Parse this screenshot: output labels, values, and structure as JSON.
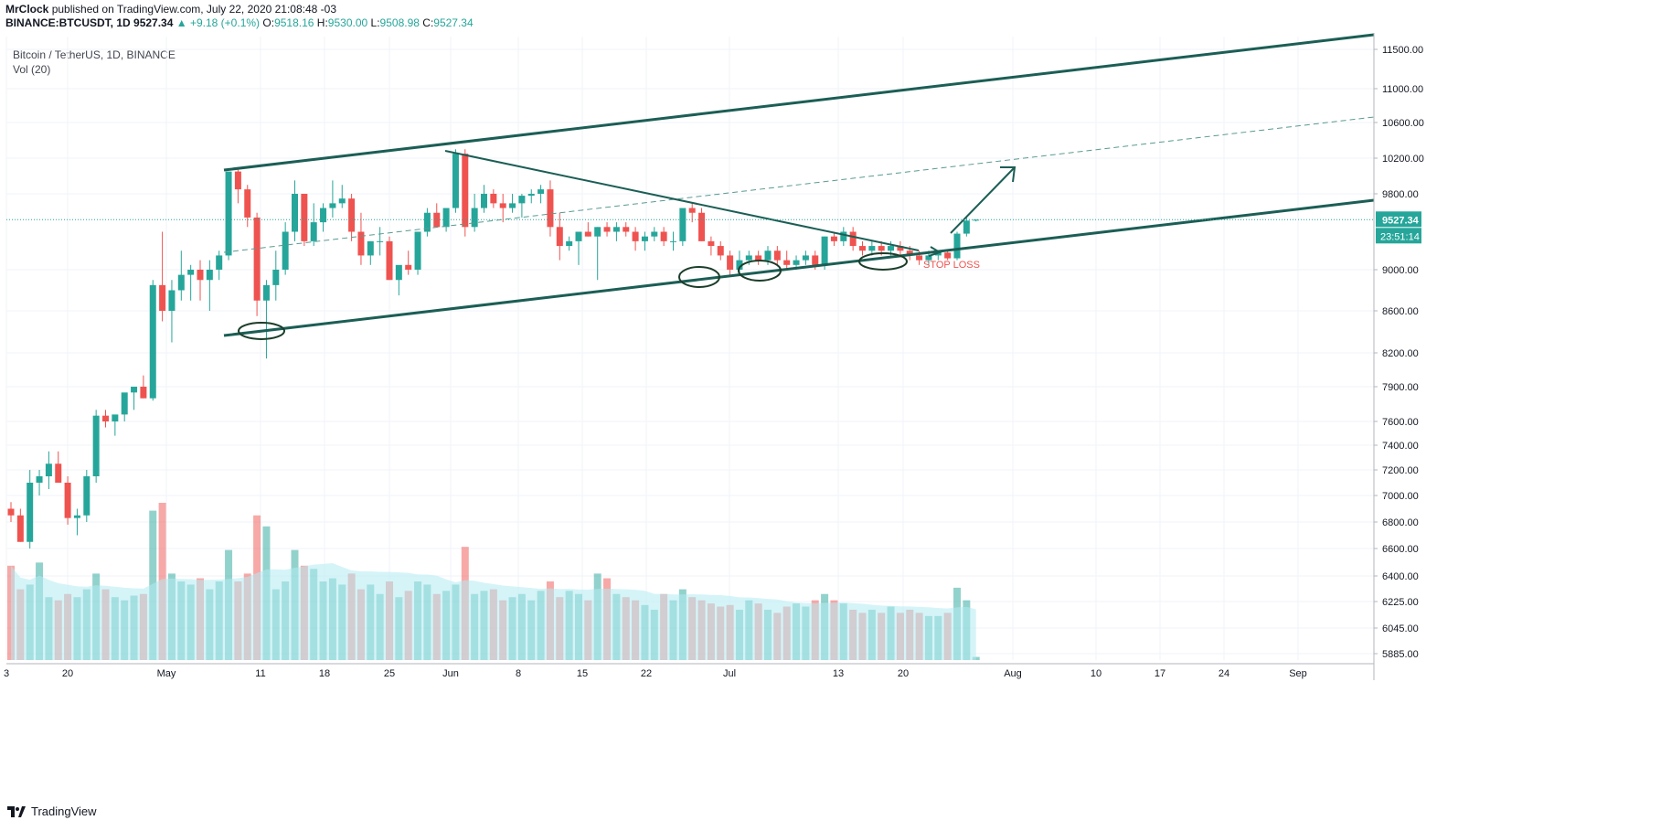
{
  "header": {
    "author": "MrClock",
    "published_text": "published on TradingView.com, July 22, 2020 21:08:48 -03",
    "symbol": "BINANCE:BTCUSDT, 1D",
    "last": "9527.34",
    "change": "+9.18 (+0.1%)",
    "o_label": "O:",
    "o_value": "9518.16",
    "h_label": "H:",
    "h_value": "9530.00",
    "l_label": "L:",
    "l_value": "9508.98",
    "c_label": "C:",
    "c_value": "9527.34"
  },
  "legend": {
    "title": "Bitcoin / TetherUS, 1D, BINANCE",
    "volume": "Vol (20)"
  },
  "price_label": "9527.34",
  "countdown_label": "23:51:14",
  "annotation": "STOP LOSS",
  "footer": {
    "brand": "TradingView"
  },
  "colors": {
    "up": "#26a69a",
    "down": "#ef5350",
    "line": "#1b5e55",
    "ma": "#b2ebf2",
    "price_line": "#26a69a"
  },
  "chart_data": {
    "type": "candlestick",
    "title": "Bitcoin / TetherUS, 1D, BINANCE",
    "y_ticks": [
      "11500.00",
      "11000.00",
      "10600.00",
      "10200.00",
      "9800.00",
      "9000.00",
      "8600.00",
      "8200.00",
      "7900.00",
      "7600.00",
      "7400.00",
      "7200.00",
      "7000.00",
      "6800.00",
      "6600.00",
      "6400.00",
      "6225.00",
      "6045.00",
      "5885.00"
    ],
    "x_ticks": [
      "3",
      "20",
      "May",
      "11",
      "18",
      "25",
      "Jun",
      "8",
      "15",
      "22",
      "Jul",
      "13",
      "20",
      "Aug",
      "10",
      "17",
      "24",
      "Sep"
    ],
    "last_price": 9527.34,
    "ohlc_approx": [
      [
        6900,
        6950,
        6800,
        6850
      ],
      [
        6850,
        6900,
        6650,
        6650
      ],
      [
        6650,
        7200,
        6600,
        7100
      ],
      [
        7100,
        7200,
        7000,
        7150
      ],
      [
        7150,
        7350,
        7050,
        7250
      ],
      [
        7250,
        7350,
        7100,
        7100
      ],
      [
        7100,
        7150,
        6780,
        6830
      ],
      [
        6830,
        6900,
        6700,
        6850
      ],
      [
        6850,
        7200,
        6800,
        7150
      ],
      [
        7150,
        7700,
        7100,
        7650
      ],
      [
        7650,
        7700,
        7550,
        7600
      ],
      [
        7600,
        7650,
        7480,
        7660
      ],
      [
        7660,
        7800,
        7600,
        7850
      ],
      [
        7850,
        7900,
        7700,
        7900
      ],
      [
        7900,
        8000,
        7800,
        7800
      ],
      [
        7800,
        8900,
        7780,
        8850
      ],
      [
        8850,
        9400,
        8500,
        8600
      ],
      [
        8600,
        8900,
        8300,
        8800
      ],
      [
        8800,
        9200,
        8700,
        8950
      ],
      [
        8950,
        9050,
        8700,
        9000
      ],
      [
        9000,
        9100,
        8700,
        8900
      ],
      [
        8900,
        9100,
        8600,
        9000
      ],
      [
        9000,
        9200,
        8900,
        9150
      ],
      [
        9150,
        10050,
        9100,
        10050
      ],
      [
        10050,
        10100,
        9700,
        9850
      ],
      [
        9850,
        9900,
        9450,
        9550
      ],
      [
        9550,
        9600,
        8550,
        8700
      ],
      [
        8700,
        8900,
        8150,
        8850
      ],
      [
        8850,
        9200,
        8700,
        9000
      ],
      [
        9000,
        9500,
        8950,
        9400
      ],
      [
        9400,
        9950,
        9300,
        9800
      ],
      [
        9800,
        9800,
        9250,
        9300
      ],
      [
        9300,
        9700,
        9250,
        9500
      ],
      [
        9500,
        9700,
        9400,
        9650
      ],
      [
        9650,
        9950,
        9550,
        9700
      ],
      [
        9700,
        9900,
        9650,
        9750
      ],
      [
        9750,
        9800,
        9300,
        9400
      ],
      [
        9400,
        9600,
        9050,
        9150
      ],
      [
        9150,
        9300,
        9050,
        9300
      ],
      [
        9300,
        9450,
        9150,
        9300
      ],
      [
        9300,
        9350,
        8900,
        8900
      ],
      [
        8900,
        9000,
        8750,
        9050
      ],
      [
        9050,
        9200,
        8950,
        9000
      ],
      [
        9000,
        9400,
        8950,
        9400
      ],
      [
        9400,
        9650,
        9350,
        9600
      ],
      [
        9600,
        9700,
        9450,
        9450
      ],
      [
        9450,
        9600,
        9400,
        9650
      ],
      [
        9650,
        10300,
        9600,
        10250
      ],
      [
        10250,
        10300,
        9350,
        9450
      ],
      [
        9450,
        9800,
        9400,
        9650
      ],
      [
        9650,
        9900,
        9600,
        9800
      ],
      [
        9800,
        9850,
        9650,
        9700
      ],
      [
        9700,
        9800,
        9500,
        9650
      ],
      [
        9650,
        9800,
        9600,
        9700
      ],
      [
        9700,
        9800,
        9550,
        9780
      ],
      [
        9780,
        9850,
        9700,
        9800
      ],
      [
        9800,
        9900,
        9700,
        9850
      ],
      [
        9850,
        9950,
        9350,
        9450
      ],
      [
        9450,
        9600,
        9100,
        9250
      ],
      [
        9250,
        9350,
        9200,
        9300
      ],
      [
        9300,
        9400,
        9050,
        9400
      ],
      [
        9400,
        9500,
        9350,
        9350
      ],
      [
        9350,
        9450,
        8900,
        9450
      ],
      [
        9450,
        9500,
        9350,
        9400
      ],
      [
        9400,
        9500,
        9300,
        9450
      ],
      [
        9450,
        9500,
        9350,
        9400
      ],
      [
        9400,
        9450,
        9200,
        9300
      ],
      [
        9300,
        9400,
        9200,
        9350
      ],
      [
        9350,
        9450,
        9300,
        9400
      ],
      [
        9400,
        9450,
        9250,
        9300
      ],
      [
        9300,
        9400,
        9200,
        9300
      ],
      [
        9300,
        9600,
        9250,
        9650
      ],
      [
        9650,
        9700,
        9500,
        9600
      ],
      [
        9600,
        9650,
        9300,
        9300
      ],
      [
        9300,
        9350,
        9150,
        9250
      ],
      [
        9250,
        9300,
        9100,
        9150
      ],
      [
        9150,
        9200,
        8950,
        9000
      ],
      [
        9000,
        9200,
        8950,
        9100
      ],
      [
        9100,
        9200,
        9050,
        9150
      ],
      [
        9150,
        9200,
        9050,
        9100
      ],
      [
        9100,
        9250,
        9050,
        9200
      ],
      [
        9200,
        9250,
        9050,
        9100
      ],
      [
        9100,
        9200,
        9000,
        9050
      ],
      [
        9050,
        9150,
        9000,
        9100
      ],
      [
        9100,
        9200,
        9050,
        9150
      ],
      [
        9150,
        9200,
        9000,
        9050
      ],
      [
        9050,
        9350,
        9000,
        9350
      ],
      [
        9350,
        9400,
        9250,
        9300
      ],
      [
        9300,
        9450,
        9250,
        9400
      ],
      [
        9400,
        9450,
        9200,
        9250
      ],
      [
        9250,
        9300,
        9150,
        9200
      ],
      [
        9200,
        9300,
        9150,
        9250
      ],
      [
        9250,
        9300,
        9150,
        9200
      ],
      [
        9200,
        9300,
        9150,
        9250
      ],
      [
        9250,
        9300,
        9150,
        9200
      ],
      [
        9200,
        9250,
        9100,
        9150
      ],
      [
        9150,
        9200,
        9050,
        9100
      ],
      [
        9100,
        9200,
        9050,
        9150
      ],
      [
        9150,
        9200,
        9100,
        9180
      ],
      [
        9180,
        9200,
        9100,
        9120
      ],
      [
        9120,
        9400,
        9100,
        9380
      ],
      [
        9380,
        9550,
        9350,
        9518
      ],
      [
        9518,
        9530,
        9509,
        9527
      ]
    ],
    "volume_approx": [
      0.6,
      0.45,
      0.48,
      0.62,
      0.4,
      0.38,
      0.42,
      0.4,
      0.45,
      0.55,
      0.45,
      0.4,
      0.38,
      0.41,
      0.42,
      0.95,
      1.0,
      0.55,
      0.5,
      0.48,
      0.52,
      0.45,
      0.5,
      0.7,
      0.5,
      0.55,
      0.92,
      0.85,
      0.45,
      0.5,
      0.7,
      0.6,
      0.58,
      0.5,
      0.52,
      0.48,
      0.55,
      0.45,
      0.48,
      0.42,
      0.5,
      0.4,
      0.44,
      0.5,
      0.48,
      0.42,
      0.44,
      0.48,
      0.72,
      0.42,
      0.44,
      0.45,
      0.38,
      0.4,
      0.42,
      0.38,
      0.44,
      0.5,
      0.4,
      0.44,
      0.42,
      0.38,
      0.55,
      0.52,
      0.42,
      0.4,
      0.38,
      0.35,
      0.32,
      0.42,
      0.38,
      0.45,
      0.4,
      0.38,
      0.36,
      0.34,
      0.35,
      0.32,
      0.38,
      0.36,
      0.32,
      0.3,
      0.34,
      0.36,
      0.34,
      0.38,
      0.42,
      0.38,
      0.36,
      0.32,
      0.3,
      0.32,
      0.3,
      0.34,
      0.3,
      0.32,
      0.3,
      0.28,
      0.28,
      0.3,
      0.46,
      0.38,
      0.02
    ]
  }
}
